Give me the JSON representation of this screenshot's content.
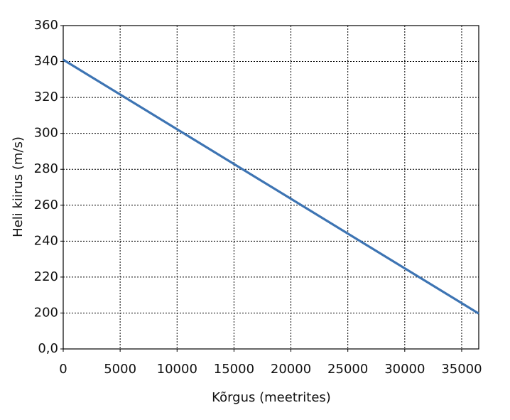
{
  "chart_data": {
    "type": "line",
    "x_label": "Kõrgus (meetrites)",
    "y_label": "Heli kiirus (m/s)",
    "x": [
      0,
      36500
    ],
    "series": [
      {
        "color": "#3d74b3",
        "values": [
          341,
          197
        ]
      }
    ],
    "xlim": [
      0,
      36500
    ],
    "xticks": [
      0,
      5000,
      10000,
      15000,
      20000,
      25000,
      30000,
      35000
    ],
    "ylim": [
      0,
      360
    ],
    "yticks": [
      {
        "value": 0,
        "label": "0,0"
      },
      200,
      220,
      240,
      260,
      280,
      300,
      320,
      340,
      360
    ],
    "broken_y_axis": true,
    "grid": true
  }
}
